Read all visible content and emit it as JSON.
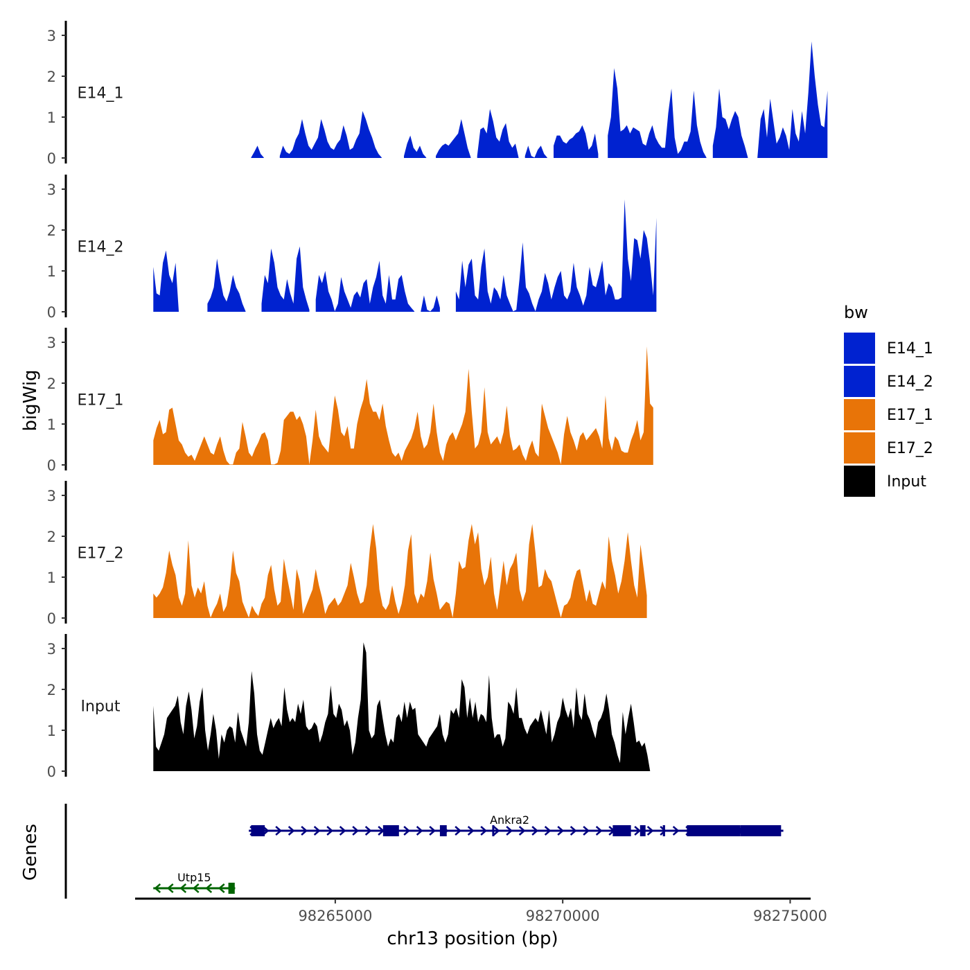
{
  "chart_data": {
    "type": "area",
    "y_axis_label": "bigWig",
    "genes_label": "Genes",
    "x_axis_label": "chr13 position (bp)",
    "x_range": [
      98260600,
      98275450
    ],
    "x_ticks": [
      {
        "value": 98265000,
        "label": "98265000"
      },
      {
        "value": 98270000,
        "label": "98270000"
      },
      {
        "value": 98275000,
        "label": "98275000"
      }
    ],
    "y_range": [
      0,
      3.3
    ],
    "y_ticks": [
      0,
      1,
      2,
      3
    ],
    "legend": {
      "title": "bw",
      "position": "right",
      "entries": [
        {
          "label": "E14_1",
          "color": "#0022d0"
        },
        {
          "label": "E14_2",
          "color": "#0022d0"
        },
        {
          "label": "E17_1",
          "color": "#e87408"
        },
        {
          "label": "E17_2",
          "color": "#e87408"
        },
        {
          "label": "Input",
          "color": "#000000"
        }
      ]
    },
    "series": [
      {
        "name": "E14_1",
        "color": "#0022d0",
        "x_start": 98262800,
        "x_step": 70,
        "values": [
          null,
          null,
          null,
          null,
          null,
          0.01,
          0.15,
          0.3,
          0.1,
          0.01,
          null,
          null,
          null,
          null,
          0.05,
          0.3,
          0.15,
          0.1,
          0.2,
          0.45,
          0.6,
          0.95,
          0.6,
          0.3,
          0.2,
          0.35,
          0.5,
          0.95,
          0.7,
          0.4,
          0.25,
          0.2,
          0.35,
          0.45,
          0.8,
          0.55,
          0.2,
          0.25,
          0.45,
          0.6,
          1.15,
          0.95,
          0.7,
          0.5,
          0.25,
          0.1,
          0.01,
          null,
          null,
          null,
          null,
          null,
          null,
          0.05,
          0.35,
          0.55,
          0.25,
          0.15,
          0.3,
          0.1,
          0.01,
          null,
          null,
          0.05,
          0.2,
          0.3,
          0.35,
          0.3,
          0.4,
          0.5,
          0.6,
          0.95,
          0.6,
          0.25,
          0.01,
          null,
          0.05,
          0.7,
          0.75,
          0.6,
          1.2,
          0.9,
          0.5,
          0.4,
          0.7,
          0.85,
          0.4,
          0.25,
          0.35,
          0.01,
          null,
          0.05,
          0.3,
          0.05,
          0.01,
          0.2,
          0.3,
          0.1,
          0.01,
          null,
          0.3,
          0.55,
          0.55,
          0.4,
          0.35,
          0.45,
          0.5,
          0.6,
          0.65,
          0.8,
          0.6,
          0.2,
          0.3,
          0.6,
          0.1,
          null,
          null,
          0.55,
          1.0,
          2.2,
          1.7,
          0.65,
          0.7,
          0.8,
          0.6,
          0.75,
          0.7,
          0.65,
          0.35,
          0.3,
          0.6,
          0.8,
          0.5,
          0.35,
          0.25,
          0.25,
          1.1,
          1.7,
          0.5,
          0.1,
          0.2,
          0.4,
          0.4,
          0.65,
          1.65,
          0.8,
          0.4,
          0.15,
          0.01,
          null,
          0.3,
          0.75,
          1.7,
          1.0,
          0.95,
          0.7,
          0.95,
          1.15,
          1.0,
          0.55,
          0.3,
          0.01,
          null,
          null,
          0.01,
          0.95,
          1.2,
          0.5,
          1.45,
          0.9,
          0.35,
          0.5,
          0.75,
          0.55,
          0.2,
          1.2,
          0.6,
          0.4,
          1.15,
          0.6,
          1.6,
          2.85,
          2.0,
          1.3,
          0.8,
          0.75,
          1.65
        ]
      },
      {
        "name": "E14_2",
        "color": "#0022d0",
        "x_start": 98261000,
        "x_step": 70,
        "values": [
          1.1,
          0.45,
          0.4,
          1.2,
          1.5,
          0.9,
          0.7,
          1.2,
          0.01,
          null,
          null,
          null,
          null,
          null,
          null,
          null,
          null,
          0.2,
          0.35,
          0.6,
          1.3,
          0.8,
          0.4,
          0.25,
          0.5,
          0.9,
          0.6,
          0.45,
          0.2,
          0.01,
          null,
          null,
          null,
          null,
          0.2,
          0.9,
          0.7,
          1.55,
          1.2,
          0.6,
          0.4,
          0.3,
          0.8,
          0.45,
          0.2,
          1.3,
          1.6,
          0.6,
          0.3,
          0.05,
          null,
          0.3,
          0.9,
          0.7,
          1.0,
          0.5,
          0.3,
          0.01,
          0.2,
          0.85,
          0.5,
          0.3,
          0.1,
          0.4,
          0.5,
          0.35,
          0.7,
          0.8,
          0.2,
          0.6,
          0.85,
          1.25,
          0.4,
          0.2,
          0.9,
          0.3,
          0.3,
          0.8,
          0.9,
          0.5,
          0.2,
          0.1,
          0.01,
          null,
          0.01,
          0.4,
          0.05,
          0.01,
          0.1,
          0.4,
          0.1,
          null,
          null,
          null,
          null,
          0.5,
          0.3,
          1.25,
          0.6,
          1.15,
          1.3,
          0.4,
          0.3,
          1.1,
          1.55,
          0.5,
          0.2,
          0.6,
          0.5,
          0.3,
          0.9,
          0.4,
          0.2,
          0.01,
          0.05,
          0.8,
          1.7,
          0.6,
          0.45,
          0.2,
          0.01,
          0.3,
          0.5,
          0.95,
          0.7,
          0.3,
          0.6,
          0.85,
          1.0,
          0.4,
          0.3,
          0.5,
          1.2,
          0.6,
          0.4,
          0.15,
          0.4,
          1.1,
          0.65,
          0.6,
          0.9,
          1.25,
          0.4,
          0.7,
          0.6,
          0.3,
          0.3,
          0.35,
          2.75,
          1.3,
          0.75,
          1.8,
          1.75,
          1.3,
          2.0,
          1.8,
          1.2,
          0.4,
          2.3
        ]
      },
      {
        "name": "E17_1",
        "color": "#e87408",
        "x_start": 98261000,
        "x_step": 70,
        "values": [
          0.6,
          0.9,
          1.1,
          0.75,
          0.8,
          1.35,
          1.4,
          1.0,
          0.6,
          0.5,
          0.3,
          0.2,
          0.25,
          0.1,
          0.3,
          0.5,
          0.7,
          0.5,
          0.3,
          0.25,
          0.5,
          0.7,
          0.35,
          0.1,
          0.01,
          0.01,
          0.3,
          0.4,
          1.05,
          0.7,
          0.3,
          0.2,
          0.4,
          0.55,
          0.75,
          0.8,
          0.6,
          0.01,
          0.01,
          0.05,
          0.35,
          1.1,
          1.2,
          1.3,
          1.3,
          1.1,
          1.2,
          1.0,
          0.7,
          0.01,
          0.6,
          1.35,
          0.7,
          0.5,
          0.4,
          0.3,
          1.0,
          1.7,
          1.35,
          0.8,
          0.7,
          0.95,
          0.4,
          0.4,
          1.0,
          1.35,
          1.6,
          2.1,
          1.5,
          1.3,
          1.3,
          1.1,
          1.5,
          0.95,
          0.6,
          0.3,
          0.2,
          0.3,
          0.1,
          0.35,
          0.5,
          0.65,
          0.9,
          1.3,
          0.7,
          0.4,
          0.5,
          0.8,
          1.5,
          0.8,
          0.3,
          0.1,
          0.5,
          0.7,
          0.8,
          0.6,
          0.8,
          1.0,
          1.3,
          2.35,
          1.3,
          0.4,
          0.5,
          0.8,
          1.9,
          0.8,
          0.5,
          0.6,
          0.7,
          0.5,
          0.8,
          1.45,
          0.7,
          0.35,
          0.4,
          0.5,
          0.25,
          0.1,
          0.4,
          0.6,
          0.3,
          0.2,
          1.5,
          1.2,
          0.9,
          0.7,
          0.5,
          0.3,
          0.01,
          0.75,
          1.2,
          0.8,
          0.6,
          0.35,
          0.7,
          0.8,
          0.6,
          0.7,
          0.8,
          0.9,
          0.7,
          0.4,
          1.7,
          0.65,
          0.35,
          0.7,
          0.6,
          0.35,
          0.3,
          0.3,
          0.6,
          0.8,
          1.1,
          0.6,
          0.8,
          2.9,
          1.5,
          1.4
        ]
      },
      {
        "name": "E17_2",
        "color": "#e87408",
        "x_start": 98261000,
        "x_step": 70,
        "values": [
          0.6,
          0.5,
          0.6,
          0.75,
          1.1,
          1.65,
          1.3,
          1.05,
          0.5,
          0.3,
          0.6,
          1.9,
          0.8,
          0.5,
          0.75,
          0.6,
          0.9,
          0.3,
          0.01,
          0.2,
          0.35,
          0.6,
          0.15,
          0.3,
          0.8,
          1.65,
          1.1,
          0.9,
          0.4,
          0.2,
          0.01,
          0.3,
          0.15,
          0.05,
          0.35,
          0.5,
          1.05,
          1.3,
          0.7,
          0.3,
          0.4,
          1.45,
          1.0,
          0.6,
          0.2,
          1.2,
          0.9,
          0.1,
          0.3,
          0.5,
          0.7,
          1.2,
          0.8,
          0.5,
          0.1,
          0.3,
          0.4,
          0.5,
          0.3,
          0.4,
          0.6,
          0.8,
          1.35,
          1.0,
          0.6,
          0.35,
          0.4,
          0.8,
          1.7,
          2.3,
          1.7,
          0.7,
          0.3,
          0.2,
          0.35,
          0.8,
          0.4,
          0.1,
          0.35,
          0.8,
          1.65,
          2.05,
          0.6,
          0.35,
          0.6,
          0.5,
          0.9,
          1.6,
          0.95,
          0.6,
          0.2,
          0.3,
          0.4,
          0.35,
          0.01,
          0.6,
          1.4,
          1.2,
          1.25,
          1.9,
          2.3,
          1.8,
          2.1,
          1.2,
          0.8,
          1.0,
          1.5,
          0.6,
          0.2,
          0.8,
          1.4,
          0.8,
          1.2,
          1.35,
          1.6,
          0.7,
          0.4,
          0.65,
          1.8,
          2.3,
          1.6,
          0.75,
          0.8,
          1.2,
          1.0,
          0.9,
          0.6,
          0.3,
          0.01,
          0.3,
          0.35,
          0.5,
          0.9,
          1.15,
          1.2,
          0.8,
          0.4,
          0.7,
          0.35,
          0.3,
          0.6,
          0.9,
          0.7,
          2.0,
          1.4,
          1.05,
          0.6,
          0.9,
          1.4,
          2.1,
          1.4,
          0.8,
          0.5,
          1.8,
          1.2,
          0.55
        ]
      },
      {
        "name": "Input",
        "color": "#000000",
        "x_start": 98261000,
        "x_step": 60,
        "values": [
          1.6,
          0.6,
          0.5,
          0.7,
          0.9,
          1.3,
          1.4,
          1.5,
          1.6,
          1.85,
          1.2,
          0.9,
          1.6,
          1.95,
          1.5,
          0.8,
          1.1,
          1.7,
          2.05,
          1.0,
          0.5,
          0.9,
          1.4,
          1.0,
          0.3,
          0.9,
          0.7,
          1.0,
          1.1,
          1.05,
          0.7,
          1.45,
          1.0,
          0.8,
          0.6,
          1.2,
          2.45,
          1.9,
          0.9,
          0.5,
          0.4,
          0.7,
          1.0,
          1.3,
          1.05,
          1.2,
          1.3,
          1.1,
          2.05,
          1.5,
          1.2,
          1.3,
          1.2,
          1.65,
          1.4,
          1.75,
          1.1,
          1.0,
          1.05,
          1.2,
          1.1,
          0.7,
          0.9,
          1.2,
          1.4,
          2.1,
          1.4,
          1.3,
          1.65,
          1.5,
          1.1,
          1.25,
          1.0,
          0.4,
          0.7,
          1.3,
          1.75,
          3.15,
          2.9,
          1.0,
          0.8,
          0.9,
          1.6,
          1.75,
          1.3,
          0.9,
          0.6,
          0.8,
          0.7,
          1.3,
          1.4,
          1.2,
          1.7,
          1.3,
          1.7,
          1.5,
          1.55,
          0.9,
          0.8,
          0.7,
          0.6,
          0.8,
          0.9,
          1.0,
          1.1,
          1.4,
          0.9,
          0.7,
          0.9,
          1.5,
          1.4,
          1.55,
          1.3,
          2.25,
          2.05,
          1.3,
          1.8,
          1.3,
          1.7,
          1.2,
          1.4,
          1.35,
          1.2,
          2.35,
          1.3,
          0.8,
          0.9,
          0.9,
          0.6,
          0.8,
          1.7,
          1.6,
          1.4,
          2.05,
          1.3,
          1.3,
          1.05,
          0.9,
          1.1,
          1.2,
          1.3,
          1.2,
          1.5,
          1.2,
          0.9,
          1.5,
          0.7,
          0.9,
          1.2,
          1.35,
          1.8,
          1.5,
          1.3,
          1.55,
          1.05,
          2.05,
          1.4,
          1.25,
          1.9,
          1.4,
          1.25,
          1.0,
          0.8,
          1.2,
          1.3,
          1.5,
          1.9,
          1.5,
          0.9,
          0.7,
          0.4,
          0.2,
          1.45,
          0.9,
          1.3,
          1.65,
          1.2,
          0.7,
          0.75,
          0.6,
          0.7,
          0.4,
          0.01
        ]
      }
    ],
    "genes": [
      {
        "name": "Ankra2",
        "strand": "+",
        "color": "#000080",
        "start": 98263100,
        "end": 98274850,
        "exons": [
          [
            98263150,
            98263450
          ],
          [
            98266050,
            98266400
          ],
          [
            98267300,
            98267450
          ],
          [
            98268450,
            98268480
          ],
          [
            98271100,
            98271500
          ],
          [
            98271700,
            98271820
          ],
          [
            98272200,
            98272250
          ],
          [
            98272730,
            98273900
          ],
          [
            98273900,
            98274800
          ]
        ]
      },
      {
        "name": "Utp15",
        "strand": "-",
        "color": "#006400",
        "start": 98261000,
        "end": 98262800,
        "exons": [
          [
            98262650,
            98262790
          ]
        ]
      }
    ]
  }
}
